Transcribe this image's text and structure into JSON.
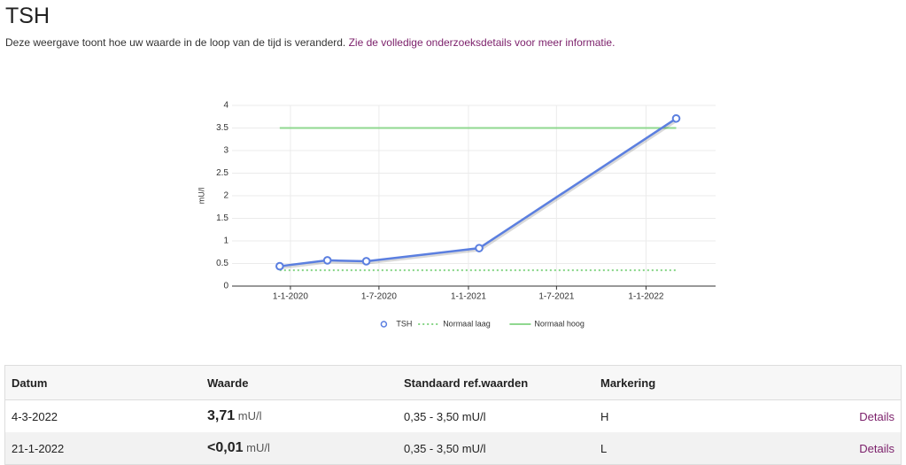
{
  "header": {
    "title": "TSH",
    "description": "Deze weergave toont hoe uw waarde in de loop van de tijd is veranderd.",
    "link": "Zie de volledige onderzoeksdetails voor meer informatie."
  },
  "chart_data": {
    "type": "line",
    "y_label": "mU/l",
    "x": [
      "2019-12-10",
      "2020-03-17",
      "2020-06-05",
      "2021-01-23",
      "2022-03-04"
    ],
    "xlim": [
      "2019-09-03",
      "2022-05-24"
    ],
    "xticks": [
      {
        "value": "2020-01-01",
        "label": "1-1-2020"
      },
      {
        "value": "2020-07-01",
        "label": "1-7-2020"
      },
      {
        "value": "2021-01-01",
        "label": "1-1-2021"
      },
      {
        "value": "2021-07-01",
        "label": "1-7-2021"
      },
      {
        "value": "2022-01-01",
        "label": "1-1-2022"
      }
    ],
    "ylim": [
      0,
      4
    ],
    "yticks": [
      0,
      0.5,
      1,
      1.5,
      2,
      2.5,
      3,
      3.5,
      4
    ],
    "grid": true,
    "series": [
      {
        "name": "TSH",
        "color": "#5b7fe0",
        "style": "markers",
        "values": [
          0.44,
          0.57,
          0.55,
          0.84,
          3.71
        ]
      },
      {
        "name": "Normaal laag",
        "color": "#86d486",
        "style": "dotted",
        "values": [
          0.35,
          0.35,
          0.35,
          0.35,
          0.35
        ]
      },
      {
        "name": "Normaal hoog",
        "color": "#8fd88f",
        "style": "solid",
        "values": [
          3.5,
          3.5,
          3.5,
          3.5,
          3.5
        ]
      }
    ]
  },
  "table": {
    "columns": [
      "Datum",
      "Waarde",
      "Standaard ref.waarden",
      "Markering"
    ],
    "rows": [
      [
        "4-3-2022",
        "3,71",
        "mU/l",
        "0,35 - 3,50 mU/l",
        "H",
        "Details"
      ],
      [
        "21-1-2022",
        "<0,01",
        "mU/l",
        "0,35 - 3,50 mU/l",
        "L",
        "Details"
      ]
    ]
  }
}
